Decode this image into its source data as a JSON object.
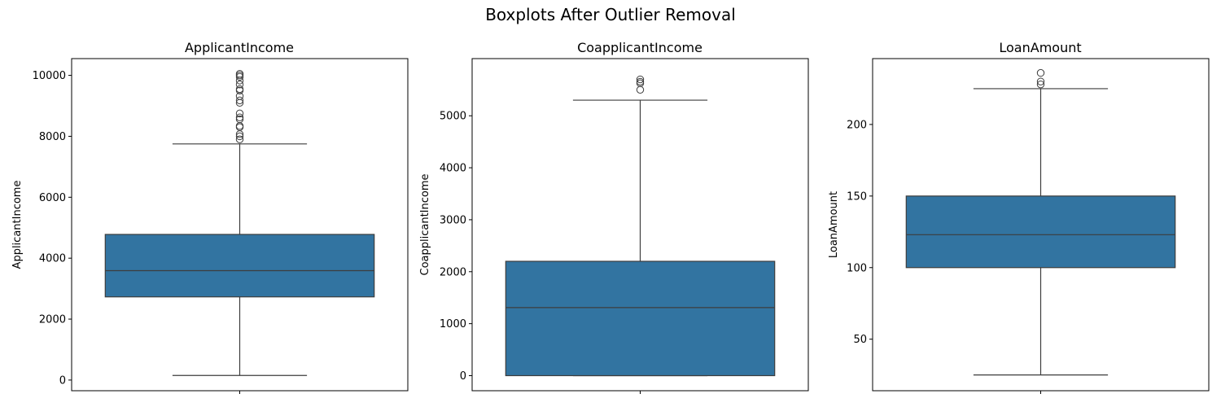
{
  "figure": {
    "title": "Boxplots After Outlier Removal",
    "box_color": "#3274a1",
    "line_color": "#3d3d3d"
  },
  "chart_data": [
    {
      "type": "box",
      "title": "ApplicantIncome",
      "xlabel": "",
      "ylabel": "ApplicantIncome",
      "ylim": [
        -350,
        10550
      ],
      "yticks": [
        0,
        2000,
        4000,
        6000,
        8000,
        10000
      ],
      "whisker_low": 150,
      "q1": 2730,
      "median": 3590,
      "q3": 4780,
      "whisker_high": 7750,
      "outliers": [
        7900,
        8000,
        8070,
        8300,
        8340,
        8560,
        8620,
        8750,
        9100,
        9180,
        9320,
        9500,
        9550,
        9700,
        9830,
        9950,
        10000,
        10050
      ]
    },
    {
      "type": "box",
      "title": "CoapplicantIncome",
      "xlabel": "",
      "ylabel": "CoapplicantIncome",
      "ylim": [
        -290,
        6100
      ],
      "yticks": [
        0,
        1000,
        2000,
        3000,
        4000,
        5000
      ],
      "whisker_low": 0,
      "q1": 0,
      "median": 1310,
      "q3": 2200,
      "whisker_high": 5300,
      "outliers": [
        5500,
        5625,
        5655,
        5700
      ]
    },
    {
      "type": "box",
      "title": "LoanAmount",
      "xlabel": "",
      "ylabel": "LoanAmount",
      "ylim": [
        14,
        246
      ],
      "yticks": [
        50,
        100,
        150,
        200
      ],
      "whisker_low": 25,
      "q1": 100,
      "median": 123,
      "q3": 150,
      "whisker_high": 225,
      "outliers": [
        228,
        230,
        236
      ]
    }
  ]
}
